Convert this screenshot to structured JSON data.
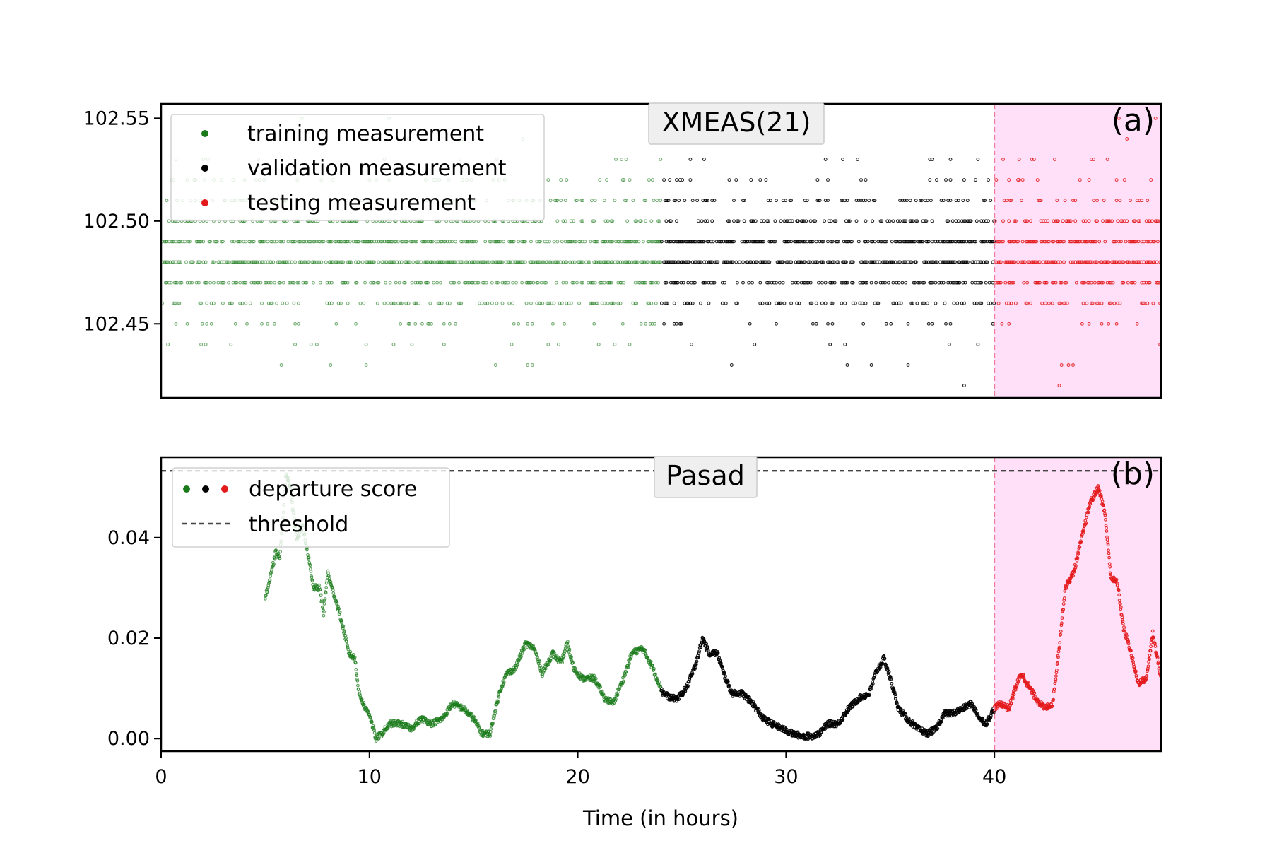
{
  "figure": {
    "xlabel": "Time (in hours)",
    "colors": {
      "training": "#1a7a1a",
      "validation": "#000000",
      "testing": "#e31a1c",
      "test_region": "#ffe0f8",
      "test_boundary": "#f07a9a",
      "threshold": "#444444"
    }
  },
  "chart_data": [
    {
      "type": "scatter",
      "title": "XMEAS(21)",
      "tag": "(a)",
      "xlim": [
        0,
        48
      ],
      "ylim": [
        102.414,
        102.557
      ],
      "yticks": [
        "102.45",
        "102.50",
        "102.55"
      ],
      "ytick_values": [
        102.45,
        102.5,
        102.55
      ],
      "levels": [
        102.42,
        102.43,
        102.44,
        102.45,
        102.46,
        102.47,
        102.48,
        102.49,
        102.5,
        102.51,
        102.52,
        102.53,
        102.54,
        102.55
      ],
      "split_points": {
        "validation_start": 24,
        "testing_start": 40
      },
      "legend": {
        "placement": "top-left",
        "entries": [
          "training measurement",
          "validation measurement",
          "testing measurement"
        ]
      },
      "series": [
        {
          "name": "training measurement",
          "x_range": [
            0,
            24
          ]
        },
        {
          "name": "validation measurement",
          "x_range": [
            24,
            40
          ]
        },
        {
          "name": "testing measurement",
          "x_range": [
            40,
            48
          ]
        }
      ]
    },
    {
      "type": "line",
      "title": "Pasad",
      "tag": "(b)",
      "xlim": [
        0,
        48
      ],
      "ylim": [
        -0.0025,
        0.056
      ],
      "xticks": [
        "0",
        "10",
        "20",
        "30",
        "40"
      ],
      "xtick_values": [
        0,
        10,
        20,
        30,
        40
      ],
      "yticks": [
        "0.00",
        "0.02",
        "0.04"
      ],
      "ytick_values": [
        0,
        0.02,
        0.04
      ],
      "threshold": 0.0533,
      "legend": {
        "placement": "top-left",
        "entries": [
          "departure score",
          "threshold"
        ]
      },
      "series": [
        {
          "name": "departure score",
          "x_range": [
            5,
            48
          ]
        }
      ],
      "x": [
        5,
        5.3,
        5.5,
        5.7,
        6.0,
        6.2,
        6.5,
        6.8,
        7.0,
        7.3,
        7.6,
        7.8,
        8.0,
        8.2,
        8.5,
        8.8,
        9.0,
        9.3,
        9.5,
        9.8,
        10.0,
        10.3,
        10.6,
        11.0,
        11.5,
        12.0,
        12.5,
        13.0,
        13.5,
        14.0,
        14.5,
        15.0,
        15.4,
        15.8,
        16.0,
        16.3,
        16.6,
        17.0,
        17.5,
        17.9,
        18.3,
        18.8,
        19.2,
        19.5,
        19.8,
        20.2,
        20.8,
        21.3,
        21.7,
        22.2,
        22.6,
        23.1,
        23.5,
        23.8,
        24.1,
        24.5,
        24.8,
        25.2,
        25.6,
        26.0,
        26.3,
        26.7,
        27.0,
        27.4,
        27.9,
        28.4,
        28.9,
        29.3,
        29.8,
        30.3,
        30.8,
        31.2,
        31.6,
        32.0,
        32.5,
        33.0,
        33.5,
        34.0,
        34.3,
        34.7,
        35.0,
        35.4,
        35.8,
        36.3,
        36.8,
        37.2,
        37.6,
        38.0,
        38.5,
        38.9,
        39.3,
        39.6,
        40.0,
        40.3,
        40.7,
        41.0,
        41.3,
        41.7,
        42.0,
        42.4,
        42.8,
        43.1,
        43.4,
        43.8,
        44.2,
        44.6,
        45.0,
        45.3,
        45.6,
        45.9,
        46.2,
        46.5,
        46.9,
        47.3,
        47.6,
        48.0
      ],
      "y": [
        0.028,
        0.033,
        0.037,
        0.036,
        0.053,
        0.05,
        0.04,
        0.042,
        0.038,
        0.03,
        0.03,
        0.025,
        0.033,
        0.03,
        0.026,
        0.021,
        0.017,
        0.016,
        0.009,
        0.006,
        0.005,
        0.0,
        0.001,
        0.003,
        0.003,
        0.002,
        0.004,
        0.003,
        0.004,
        0.007,
        0.006,
        0.004,
        0.001,
        0.001,
        0.005,
        0.01,
        0.013,
        0.014,
        0.019,
        0.018,
        0.013,
        0.017,
        0.015,
        0.019,
        0.014,
        0.012,
        0.012,
        0.008,
        0.007,
        0.012,
        0.017,
        0.018,
        0.015,
        0.012,
        0.009,
        0.008,
        0.008,
        0.01,
        0.014,
        0.02,
        0.017,
        0.017,
        0.013,
        0.009,
        0.009,
        0.007,
        0.004,
        0.003,
        0.002,
        0.001,
        0.0005,
        0.0005,
        0.001,
        0.003,
        0.003,
        0.006,
        0.008,
        0.009,
        0.013,
        0.016,
        0.012,
        0.006,
        0.004,
        0.002,
        0.001,
        0.002,
        0.005,
        0.005,
        0.006,
        0.007,
        0.004,
        0.003,
        0.006,
        0.007,
        0.006,
        0.01,
        0.013,
        0.01,
        0.008,
        0.006,
        0.007,
        0.018,
        0.03,
        0.033,
        0.04,
        0.047,
        0.05,
        0.045,
        0.032,
        0.031,
        0.022,
        0.018,
        0.011,
        0.012,
        0.021,
        0.012
      ]
    }
  ]
}
